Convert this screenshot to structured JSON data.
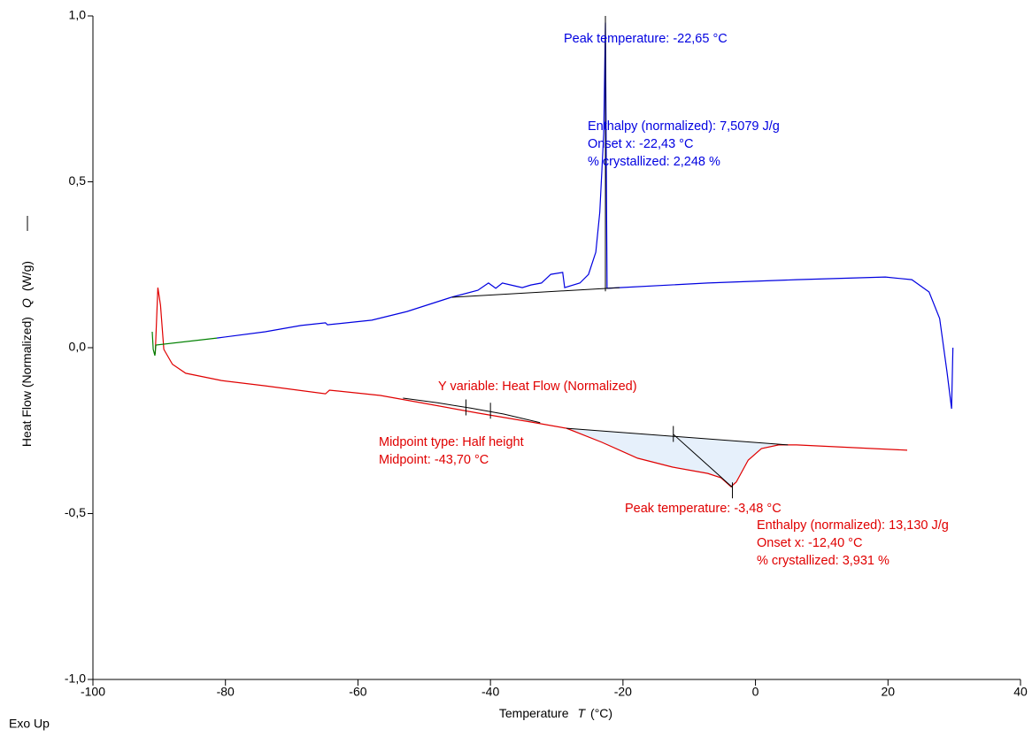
{
  "chart_data": {
    "type": "line",
    "x_label": "Temperature",
    "x_symbol": "T",
    "x_unit": "(°C)",
    "y_label": "Heat Flow (Normalized)",
    "y_symbol": "Q",
    "y_unit": "(W/g)",
    "corner_note": "Exo Up",
    "xlim": [
      -100,
      40
    ],
    "ylim": [
      -1.0,
      1.0
    ],
    "xticks": [
      -100,
      -80,
      -60,
      -40,
      -20,
      0,
      20,
      40
    ],
    "yticks": [
      {
        "value": -1.0,
        "label": "-1,0"
      },
      {
        "value": -0.5,
        "label": "-0,5"
      },
      {
        "value": 0.0,
        "label": "0,0"
      },
      {
        "value": 0.5,
        "label": "0,5"
      },
      {
        "value": 1.0,
        "label": "1,0"
      }
    ],
    "series": [
      {
        "color": "#0000e0",
        "x": [
          -81.3,
          -74,
          -68.6,
          -64.9,
          -64.6,
          -57.9,
          -52.6,
          -45.9,
          -41.9,
          -40.3,
          -39.2,
          -38.2,
          -36.5,
          -35.2,
          -33.9,
          -32.3,
          -30.9,
          -29.1,
          -28.8,
          -26.5,
          -25.2,
          -24.1,
          -23.5,
          -22.9,
          -22.65,
          -22.4,
          -20.5,
          -7.2,
          6.2,
          19.6,
          23.6,
          26.2,
          27.8,
          28.9,
          29.6,
          29.8
        ],
        "values": [
          0.029,
          0.048,
          0.067,
          0.075,
          0.069,
          0.083,
          0.109,
          0.152,
          0.173,
          0.195,
          0.179,
          0.195,
          0.187,
          0.181,
          0.189,
          0.195,
          0.221,
          0.227,
          0.181,
          0.195,
          0.221,
          0.288,
          0.408,
          0.648,
          0.98,
          0.179,
          0.181,
          0.195,
          0.205,
          0.213,
          0.205,
          0.168,
          0.088,
          -0.072,
          -0.184,
          0.0
        ]
      },
      {
        "color": "#e00000",
        "x": [
          -90.6,
          -90.2,
          -89.8,
          -89.3,
          -88,
          -86,
          -80.6,
          -74,
          -64.9,
          -64.3,
          -56.6,
          -49.9,
          -41.9,
          -33.9,
          -28.5,
          -23.2,
          -17.8,
          -12.5,
          -7.2,
          -5.2,
          -3.7,
          -2.9,
          -1.1,
          0.9,
          3.5,
          6.2,
          22.9
        ],
        "values": [
          -0.019,
          0.181,
          0.128,
          -0.005,
          -0.05,
          -0.077,
          -0.099,
          -0.115,
          -0.139,
          -0.128,
          -0.144,
          -0.168,
          -0.197,
          -0.224,
          -0.243,
          -0.285,
          -0.333,
          -0.36,
          -0.379,
          -0.392,
          -0.419,
          -0.405,
          -0.339,
          -0.304,
          -0.293,
          -0.293,
          -0.309
        ]
      },
      {
        "color": "#008000",
        "x": [
          -91.05,
          -90.9,
          -90.65,
          -90.5,
          -81.3
        ],
        "values": [
          0.048,
          -0.005,
          -0.024,
          0.008,
          0.029
        ]
      }
    ],
    "baselines": [
      {
        "color": "#000000",
        "x": [
          -45.8,
          -20.5
        ],
        "values": [
          0.152,
          0.181
        ]
      },
      {
        "color": "#000000",
        "x": [
          -22.65,
          -22.65
        ],
        "values": [
          1.0,
          0.17
        ]
      },
      {
        "color": "#000000",
        "x": [
          -28.5,
          4.9
        ],
        "values": [
          -0.243,
          -0.293
        ]
      },
      {
        "color": "#000000",
        "x": [
          -12.4,
          -3.48
        ],
        "values": [
          -0.261,
          -0.421
        ]
      },
      {
        "color": "#000000",
        "x": [
          -53.2,
          -48,
          -43,
          -38,
          -32.5
        ],
        "values": [
          -0.152,
          -0.166,
          -0.182,
          -0.2,
          -0.226
        ]
      }
    ],
    "peak_fill": "#e6f0fb",
    "markers": {
      "color": "#000000",
      "x": [
        -43.7,
        -40,
        -12.4,
        -3.48
      ],
      "values": [
        -0.18,
        -0.19,
        -0.26,
        -0.43
      ]
    },
    "annotations": [
      {
        "text": "Peak temperature: -22,65 °C",
        "color": "#0000e0"
      },
      {
        "text": "Enthalpy (normalized): 7,5079 J/g",
        "color": "#0000e0"
      },
      {
        "text": "Onset x: -22,43 °C",
        "color": "#0000e0"
      },
      {
        "text": "% crystallized: 2,248 %",
        "color": "#0000e0"
      },
      {
        "text": "Y variable: Heat Flow (Normalized)",
        "color": "#e00000"
      },
      {
        "text": "Midpoint type: Half height",
        "color": "#e00000"
      },
      {
        "text": "Midpoint: -43,70 °C",
        "color": "#e00000"
      },
      {
        "text": "Peak temperature: -3,48 °C",
        "color": "#e00000"
      },
      {
        "text": "Enthalpy (normalized): 13,130 J/g",
        "color": "#e00000"
      },
      {
        "text": "Onset x: -12,40 °C",
        "color": "#e00000"
      },
      {
        "text": "% crystallized: 3,931 %",
        "color": "#e00000"
      }
    ]
  }
}
